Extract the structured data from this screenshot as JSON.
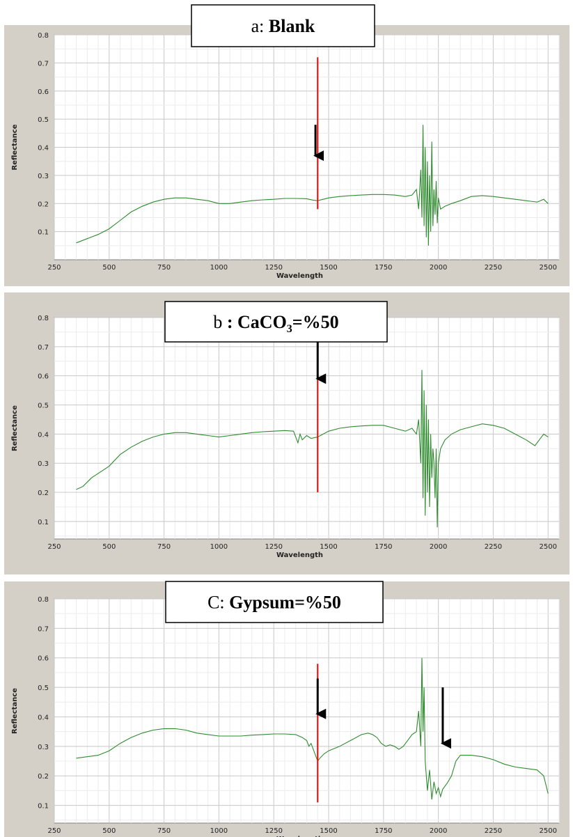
{
  "chart_data": [
    {
      "type": "line",
      "title_prefix": "a:",
      "title_main": "Blank",
      "title_sub": "",
      "title_end": "",
      "xlabel": "Wavelength",
      "ylabel": "Reflectance",
      "xlim": [
        250,
        2550
      ],
      "ylim": [
        0,
        0.8
      ],
      "xticks": [
        "250",
        "500",
        "750",
        "1000",
        "1250",
        "1500",
        "1750",
        "2000",
        "2250",
        "2500"
      ],
      "yticks": [
        "0.1",
        "0.2",
        "0.3",
        "0.4",
        "0.5",
        "0.6",
        "0.7",
        "0.8"
      ],
      "grid": true,
      "line_color": "#2e8b2e",
      "marker_color": "#ff0000",
      "arrow_color": "#000000",
      "series": [
        {
          "x": [
            350,
            400,
            450,
            500,
            550,
            600,
            650,
            700,
            750,
            800,
            850,
            900,
            950,
            1000,
            1050,
            1100,
            1150,
            1200,
            1250,
            1300,
            1350,
            1400,
            1430,
            1450,
            1500,
            1550,
            1600,
            1650,
            1700,
            1750,
            1800,
            1850,
            1880,
            1900,
            1910,
            1920,
            1925,
            1930,
            1935,
            1940,
            1945,
            1950,
            1955,
            1960,
            1965,
            1970,
            1975,
            1980,
            1985,
            1990,
            1995,
            2000,
            2010,
            2030,
            2060,
            2100,
            2150,
            2200,
            2250,
            2300,
            2350,
            2400,
            2450,
            2480,
            2500
          ],
          "y": [
            0.06,
            0.075,
            0.09,
            0.11,
            0.14,
            0.17,
            0.19,
            0.205,
            0.215,
            0.22,
            0.22,
            0.215,
            0.21,
            0.2,
            0.2,
            0.205,
            0.21,
            0.213,
            0.215,
            0.218,
            0.218,
            0.217,
            0.212,
            0.21,
            0.22,
            0.225,
            0.228,
            0.23,
            0.232,
            0.232,
            0.23,
            0.225,
            0.23,
            0.25,
            0.18,
            0.32,
            0.15,
            0.48,
            0.12,
            0.4,
            0.08,
            0.35,
            0.05,
            0.3,
            0.1,
            0.42,
            0.12,
            0.25,
            0.16,
            0.28,
            0.13,
            0.22,
            0.18,
            0.19,
            0.2,
            0.21,
            0.225,
            0.228,
            0.225,
            0.22,
            0.215,
            0.21,
            0.205,
            0.215,
            0.2
          ]
        }
      ],
      "marker_x": 1450,
      "marker_y": [
        0.18,
        0.72
      ],
      "arrows": [
        {
          "x": 1440,
          "y_from": 0.48,
          "y_to": 0.37
        }
      ]
    },
    {
      "type": "line",
      "title_prefix": "b",
      "title_main": ": CaCO",
      "title_sub": "3",
      "title_end": "=%50",
      "xlabel": "Wavelength",
      "ylabel": "Reflectance",
      "xlim": [
        250,
        2550
      ],
      "ylim": [
        0.04,
        0.8
      ],
      "xticks": [
        "250",
        "500",
        "750",
        "1000",
        "1250",
        "1500",
        "1750",
        "2000",
        "2250",
        "2500"
      ],
      "yticks": [
        "0.1",
        "0.2",
        "0.3",
        "0.4",
        "0.5",
        "0.6",
        "0.7",
        "0.8"
      ],
      "grid": true,
      "line_color": "#2e8b2e",
      "marker_color": "#ff0000",
      "arrow_color": "#000000",
      "series": [
        {
          "x": [
            350,
            380,
            420,
            460,
            500,
            550,
            600,
            650,
            700,
            750,
            800,
            850,
            900,
            950,
            1000,
            1050,
            1100,
            1150,
            1200,
            1250,
            1300,
            1340,
            1360,
            1370,
            1380,
            1400,
            1420,
            1450,
            1500,
            1550,
            1600,
            1650,
            1700,
            1750,
            1800,
            1850,
            1880,
            1900,
            1910,
            1920,
            1925,
            1930,
            1935,
            1940,
            1945,
            1950,
            1955,
            1960,
            1965,
            1970,
            1975,
            1980,
            1985,
            1990,
            1995,
            2000,
            2010,
            2030,
            2060,
            2100,
            2150,
            2200,
            2250,
            2300,
            2350,
            2400,
            2440,
            2460,
            2480,
            2500
          ],
          "y": [
            0.21,
            0.22,
            0.25,
            0.27,
            0.29,
            0.33,
            0.355,
            0.375,
            0.39,
            0.4,
            0.405,
            0.405,
            0.4,
            0.395,
            0.39,
            0.395,
            0.4,
            0.405,
            0.408,
            0.41,
            0.412,
            0.41,
            0.37,
            0.4,
            0.38,
            0.395,
            0.385,
            0.39,
            0.41,
            0.42,
            0.425,
            0.428,
            0.43,
            0.43,
            0.42,
            0.41,
            0.42,
            0.4,
            0.45,
            0.3,
            0.62,
            0.18,
            0.55,
            0.12,
            0.5,
            0.2,
            0.45,
            0.15,
            0.4,
            0.25,
            0.35,
            0.3,
            0.18,
            0.35,
            0.08,
            0.3,
            0.35,
            0.38,
            0.4,
            0.415,
            0.425,
            0.435,
            0.43,
            0.42,
            0.4,
            0.38,
            0.36,
            0.38,
            0.4,
            0.39
          ]
        }
      ],
      "marker_x": 1450,
      "marker_y": [
        0.2,
        0.72
      ],
      "arrows": [
        {
          "x": 1450,
          "y_from": 0.73,
          "y_to": 0.59
        }
      ]
    },
    {
      "type": "line",
      "title_prefix": "C:",
      "title_main": "Gypsum=%50",
      "title_sub": "",
      "title_end": "",
      "xlabel": "Wavelength",
      "ylabel": "Reflectance",
      "xlim": [
        250,
        2550
      ],
      "ylim": [
        0.04,
        0.8
      ],
      "xticks": [
        "250",
        "500",
        "750",
        "1000",
        "1250",
        "1500",
        "1750",
        "2000",
        "2250",
        "2500"
      ],
      "yticks": [
        "0.1",
        "0.2",
        "0.3",
        "0.4",
        "0.5",
        "0.6",
        "0.7",
        "0.8"
      ],
      "grid": true,
      "line_color": "#2e8b2e",
      "marker_color": "#ff0000",
      "arrow_color": "#000000",
      "series": [
        {
          "x": [
            350,
            400,
            450,
            500,
            550,
            600,
            650,
            700,
            750,
            800,
            850,
            900,
            950,
            1000,
            1050,
            1100,
            1150,
            1200,
            1250,
            1300,
            1350,
            1380,
            1400,
            1410,
            1420,
            1440,
            1450,
            1460,
            1480,
            1500,
            1550,
            1600,
            1650,
            1680,
            1700,
            1720,
            1740,
            1760,
            1780,
            1800,
            1820,
            1840,
            1860,
            1880,
            1900,
            1910,
            1920,
            1925,
            1930,
            1935,
            1940,
            1950,
            1960,
            1970,
            1980,
            1990,
            2000,
            2010,
            2020,
            2040,
            2060,
            2080,
            2100,
            2150,
            2200,
            2250,
            2300,
            2350,
            2400,
            2450,
            2480,
            2500
          ],
          "y": [
            0.26,
            0.265,
            0.27,
            0.285,
            0.31,
            0.33,
            0.345,
            0.355,
            0.36,
            0.36,
            0.355,
            0.345,
            0.34,
            0.335,
            0.335,
            0.335,
            0.338,
            0.34,
            0.342,
            0.342,
            0.34,
            0.33,
            0.32,
            0.3,
            0.31,
            0.27,
            0.25,
            0.26,
            0.275,
            0.285,
            0.3,
            0.32,
            0.34,
            0.345,
            0.34,
            0.33,
            0.31,
            0.3,
            0.305,
            0.3,
            0.29,
            0.3,
            0.32,
            0.34,
            0.35,
            0.42,
            0.3,
            0.6,
            0.35,
            0.5,
            0.25,
            0.15,
            0.22,
            0.12,
            0.18,
            0.14,
            0.16,
            0.13,
            0.155,
            0.175,
            0.2,
            0.25,
            0.27,
            0.27,
            0.265,
            0.255,
            0.24,
            0.23,
            0.225,
            0.22,
            0.2,
            0.14
          ]
        }
      ],
      "marker_x": 1450,
      "marker_y": [
        0.11,
        0.58
      ],
      "arrows": [
        {
          "x": 1450,
          "y_from": 0.53,
          "y_to": 0.41
        },
        {
          "x": 2020,
          "y_from": 0.5,
          "y_to": 0.31
        }
      ]
    }
  ]
}
